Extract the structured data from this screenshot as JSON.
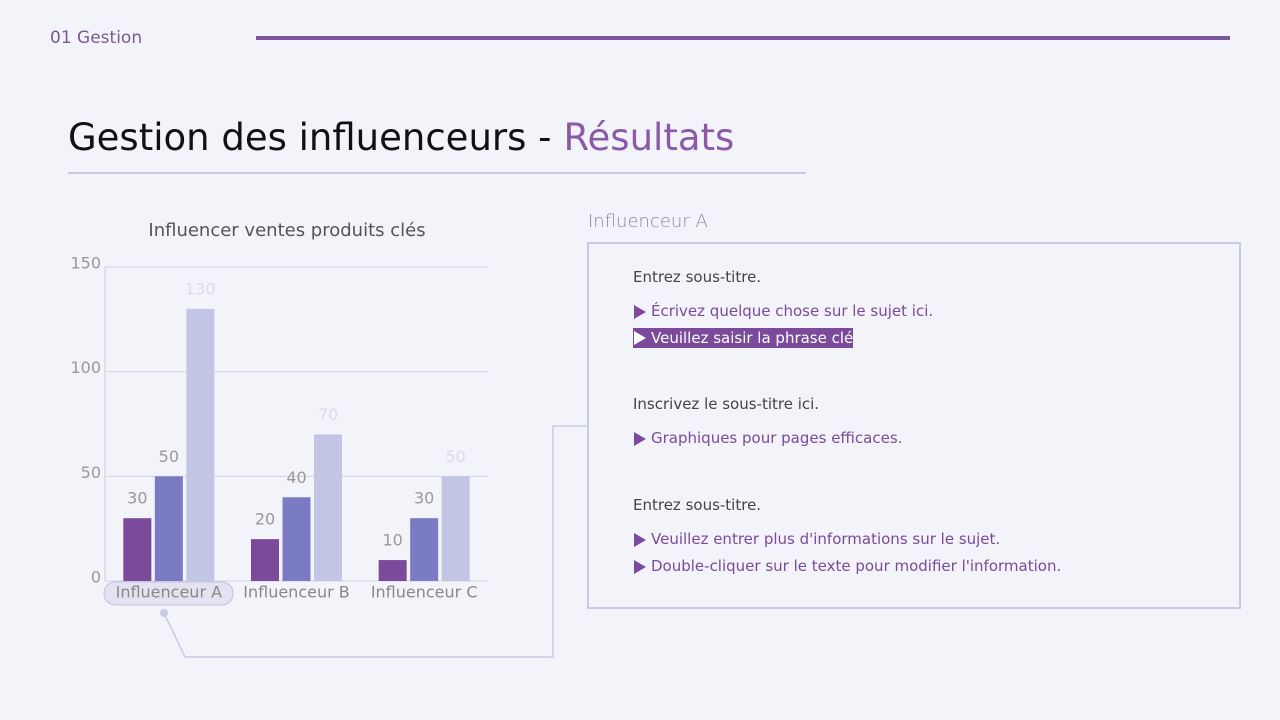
{
  "section": "01 Gestion",
  "title": {
    "main": "Gestion des influenceurs -",
    "accent": "Résultats"
  },
  "chart_data": {
    "type": "bar",
    "title": "Influencer ventes produits clés",
    "categories": [
      "Influenceur A",
      "Influenceur B",
      "Influenceur C"
    ],
    "series": [
      {
        "color": "#7b4a9a",
        "values": [
          30,
          20,
          10
        ]
      },
      {
        "color": "#7b7bc4",
        "values": [
          50,
          40,
          30
        ]
      },
      {
        "color": "#c2c6e4",
        "values": [
          130,
          70,
          50
        ]
      }
    ],
    "ylim": [
      0,
      150
    ],
    "yticks": [
      0,
      50,
      100,
      150
    ],
    "grid": true
  },
  "panel": {
    "heading": "Influenceur A",
    "sections": [
      {
        "subtitle": "Entrez sous-titre.",
        "items": [
          {
            "text": "Écrivez quelque chose sur le sujet ici."
          },
          {
            "text": "Veuillez saisir la phrase clé",
            "highlighted": true
          }
        ]
      },
      {
        "subtitle": "Inscrivez le sous-titre ici.",
        "items": [
          {
            "text": "Graphiques pour pages efficaces."
          }
        ]
      },
      {
        "subtitle": "Entrez sous-titre.",
        "items": [
          {
            "text": "Veuillez entrer plus d'informations sur le sujet."
          },
          {
            "text": "Double-cliquer sur le texte pour modifier l'information."
          }
        ]
      }
    ]
  }
}
